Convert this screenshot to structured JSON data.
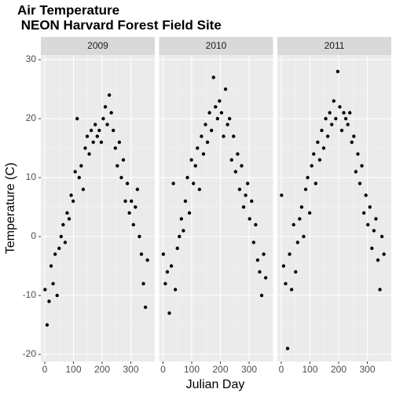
{
  "chart_data": {
    "type": "scatter",
    "title": [
      "Air Temperature",
      " NEON Harvard Forest Field Site"
    ],
    "x_label": "Julian Day",
    "y_label": "Temperature (C)",
    "color": "#000000",
    "grid": true,
    "xlim": [
      -13.7,
      383.6
    ],
    "ylim": [
      -21.2,
      30.8
    ],
    "xticks": [
      0,
      100,
      200,
      300
    ],
    "yticks": [
      -20,
      -10,
      0,
      10,
      20,
      30
    ],
    "x": [
      1,
      8,
      15,
      22,
      29,
      36,
      43,
      50,
      57,
      64,
      71,
      78,
      85,
      92,
      99,
      106,
      113,
      120,
      127,
      134,
      141,
      148,
      155,
      162,
      169,
      176,
      183,
      190,
      197,
      204,
      211,
      218,
      225,
      232,
      239,
      246,
      253,
      260,
      267,
      274,
      281,
      288,
      295,
      302,
      309,
      316,
      323,
      330,
      337,
      344,
      351,
      358
    ],
    "facets": [
      {
        "label": "2009",
        "values": [
          -9,
          -15,
          -11,
          -5,
          -8,
          -3,
          -10,
          -2,
          0,
          2,
          -1,
          4,
          3,
          7,
          6,
          11,
          20,
          10,
          12,
          8,
          15,
          17,
          14,
          18,
          16,
          19,
          17,
          18,
          16,
          20,
          22,
          19,
          24,
          21,
          18,
          15,
          12,
          16,
          10,
          13,
          6,
          9,
          4,
          6,
          2,
          5,
          8,
          0,
          -3,
          -8,
          -12,
          -4
        ]
      },
      {
        "label": "2010",
        "values": [
          -3,
          -8,
          -6,
          -13,
          -5,
          9,
          -9,
          -2,
          0,
          3,
          1,
          6,
          10,
          4,
          13,
          9,
          12,
          15,
          8,
          17,
          14,
          19,
          16,
          21,
          18,
          27,
          22,
          20,
          23,
          21,
          17,
          25,
          19,
          20,
          13,
          17,
          11,
          14,
          8,
          12,
          5,
          7,
          9,
          3,
          6,
          -1,
          2,
          -4,
          -6,
          -10,
          -3,
          -7
        ]
      },
      {
        "label": "2011",
        "values": [
          7,
          -5,
          -8,
          -19,
          -3,
          -9,
          2,
          -6,
          -1,
          3,
          5,
          0,
          8,
          10,
          4,
          12,
          14,
          9,
          16,
          13,
          18,
          15,
          20,
          17,
          21,
          19,
          23,
          20,
          28,
          22,
          18,
          21,
          20,
          19,
          21,
          16,
          17,
          11,
          14,
          9,
          12,
          4,
          7,
          2,
          5,
          -2,
          1,
          3,
          -4,
          -9,
          0,
          -3
        ]
      }
    ]
  }
}
